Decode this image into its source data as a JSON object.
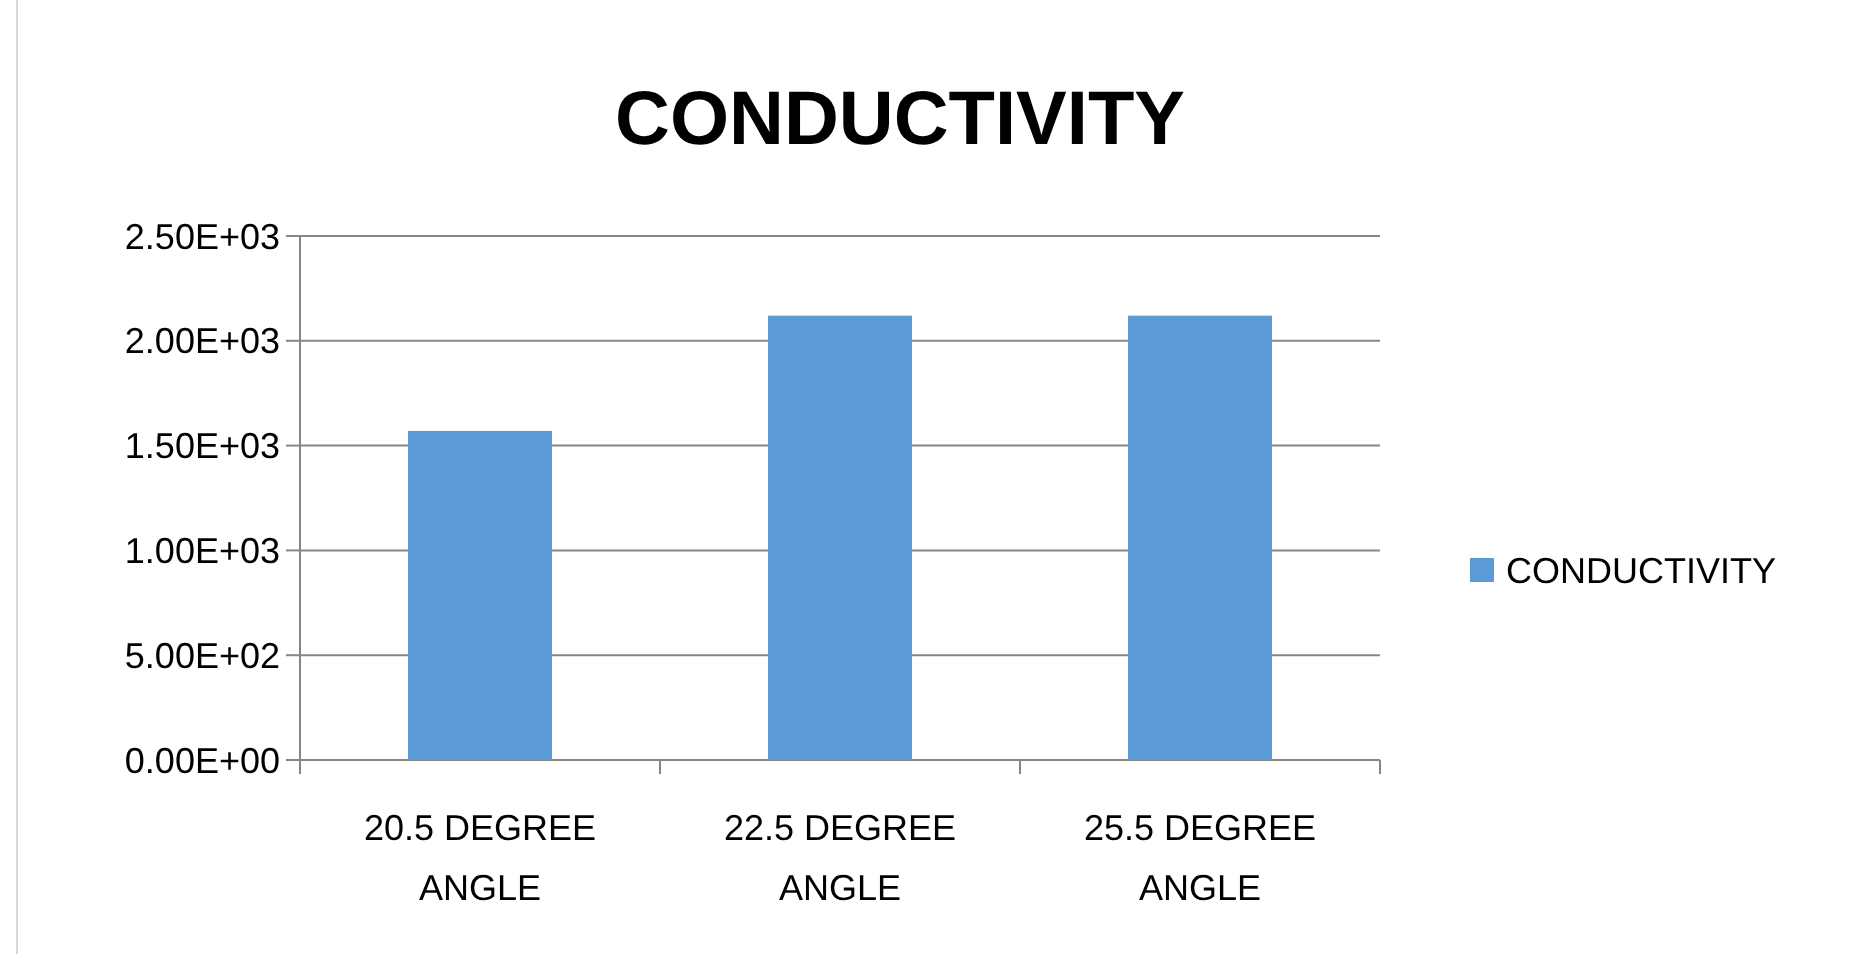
{
  "chart_data": {
    "type": "bar",
    "title": "CONDUCTIVITY",
    "categories": [
      "20.5 DEGREE ANGLE",
      "22.5 DEGREE ANGLE",
      "25.5 DEGREE ANGLE"
    ],
    "series": [
      {
        "name": "CONDUCTIVITY",
        "color": "#5b9bd5",
        "values": [
          1570,
          2120,
          2120
        ]
      }
    ],
    "ylim": [
      0,
      2500
    ],
    "yticks": [
      {
        "value": 0,
        "label": "0.00E+00"
      },
      {
        "value": 500,
        "label": "5.00E+02"
      },
      {
        "value": 1000,
        "label": "1.00E+03"
      },
      {
        "value": 1500,
        "label": "1.50E+03"
      },
      {
        "value": 2000,
        "label": "2.00E+03"
      },
      {
        "value": 2500,
        "label": "2.50E+03"
      }
    ],
    "grid": "y",
    "legend": "right"
  }
}
